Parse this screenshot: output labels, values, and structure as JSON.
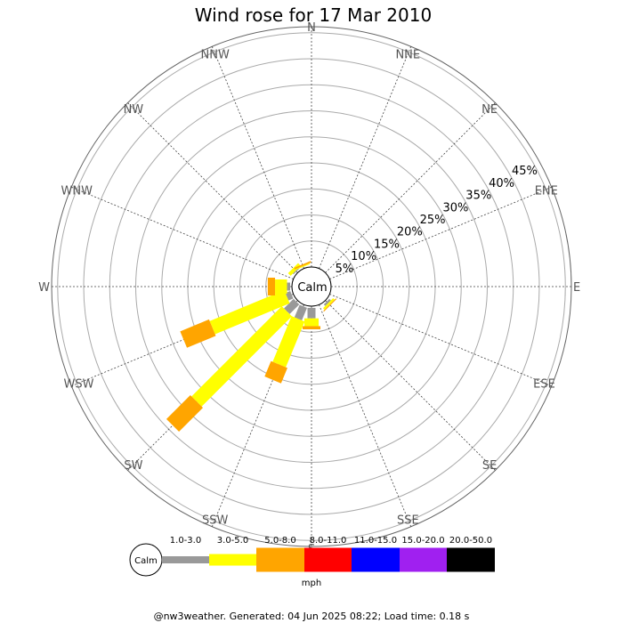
{
  "chart_data": {
    "type": "windrose",
    "title": "Wind rose for 17 Mar 2010",
    "directions": [
      "N",
      "NNE",
      "NE",
      "ENE",
      "E",
      "ESE",
      "SE",
      "SSE",
      "S",
      "SSW",
      "SW",
      "WSW",
      "W",
      "WNW",
      "NW",
      "NNW"
    ],
    "ring_labels": [
      "5%",
      "10%",
      "15%",
      "20%",
      "25%",
      "30%",
      "35%",
      "40%",
      "45%"
    ],
    "rings": [
      5,
      10,
      15,
      20,
      25,
      30,
      35,
      40,
      45
    ],
    "calm_label": "Calm",
    "unit": "mph",
    "bins": [
      {
        "label": "1.0-3.0",
        "color": "#999999"
      },
      {
        "label": "3.0-5.0",
        "color": "#ffff00"
      },
      {
        "label": "5.0-8.0",
        "color": "#ffa500"
      },
      {
        "label": "8.0-11.0",
        "color": "#ff0000"
      },
      {
        "label": "11.0-15.0",
        "color": "#0000ff"
      },
      {
        "label": "15.0-20.0",
        "color": "#a020f0"
      },
      {
        "label": "20.0-50.0",
        "color": "#000000"
      }
    ],
    "frequencies_percent": {
      "N": [
        0,
        0,
        0,
        0,
        0,
        0,
        0
      ],
      "NNE": [
        0,
        0,
        0,
        0,
        0,
        0,
        0
      ],
      "NE": [
        0,
        0,
        0,
        0,
        0,
        0,
        0
      ],
      "ENE": [
        0,
        0,
        0,
        0,
        0,
        0,
        0
      ],
      "E": [
        0,
        0,
        0,
        0,
        0,
        0,
        0
      ],
      "ESE": [
        0,
        0,
        0,
        0,
        0,
        0,
        0
      ],
      "SE": [
        0.4,
        0.4,
        0.2,
        0,
        0,
        0,
        0
      ],
      "SSE": [
        0,
        0,
        0,
        0,
        0,
        0,
        0
      ],
      "S": [
        2.0,
        1.5,
        0.6,
        0,
        0,
        0,
        0
      ],
      "SSW": [
        2.6,
        9.5,
        3.2,
        0,
        0,
        0,
        0
      ],
      "SW": [
        2.6,
        24.5,
        6.5,
        0,
        0,
        0,
        0
      ],
      "WSW": [
        1.0,
        15.5,
        6.0,
        0,
        0,
        0,
        0
      ],
      "W": [
        0.6,
        2.3,
        1.4,
        0,
        0,
        0,
        0
      ],
      "WNW": [
        0,
        0,
        0,
        0,
        0,
        0,
        0
      ],
      "NW": [
        0.2,
        0.7,
        0,
        0,
        0,
        0,
        0
      ],
      "NNW": [
        0,
        0.2,
        0.3,
        0,
        0,
        0,
        0
      ]
    }
  },
  "footer": "@nw3weather. Generated: 04 Jun 2025 08:22; Load time: 0.18 s"
}
